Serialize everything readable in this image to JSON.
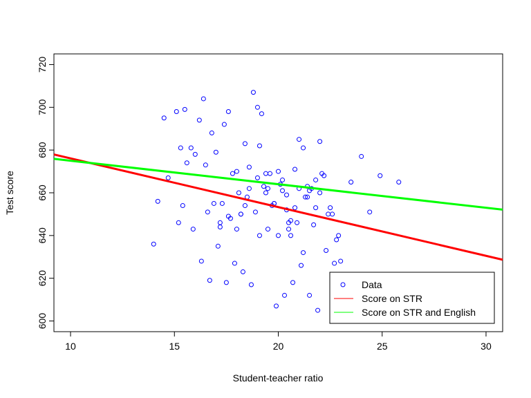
{
  "chart_data": {
    "type": "scatter",
    "title": "",
    "xlabel": "Student-teacher ratio",
    "ylabel": "Test score",
    "xlim": [
      9.2,
      30.8
    ],
    "ylim": [
      595,
      725
    ],
    "xticks": [
      10,
      15,
      20,
      25,
      30
    ],
    "yticks": [
      600,
      620,
      640,
      660,
      680,
      700,
      720
    ],
    "grid": false,
    "legend": {
      "position": "bottom-right",
      "entries": [
        "Data",
        "Score on STR",
        "Score on STR and English"
      ]
    },
    "series": [
      {
        "name": "Data",
        "kind": "points",
        "color": "#0000ff",
        "marker": "open-circle",
        "x": [
          14.0,
          14.2,
          14.5,
          14.7,
          15.1,
          15.2,
          15.3,
          15.4,
          15.5,
          15.6,
          15.8,
          16.0,
          16.2,
          16.4,
          16.5,
          16.6,
          16.8,
          17.0,
          17.2,
          17.4,
          17.6,
          17.8,
          18.0,
          18.2,
          18.4,
          18.6,
          18.8,
          19.0,
          19.2,
          19.4,
          19.6,
          19.8,
          20.0,
          20.2,
          20.4,
          20.6,
          20.8,
          21.0,
          21.2,
          21.4,
          21.6,
          21.8,
          22.0,
          22.2,
          22.4,
          22.6,
          22.8,
          23.0,
          23.5,
          24.0,
          24.4,
          24.9,
          25.8,
          16.3,
          16.7,
          17.1,
          17.5,
          17.9,
          18.3,
          18.7,
          19.1,
          19.5,
          19.9,
          20.3,
          20.7,
          21.1,
          21.5,
          21.9,
          22.3,
          22.7,
          18.1,
          18.5,
          18.9,
          19.3,
          19.7,
          20.1,
          20.5,
          20.9,
          21.3,
          21.7,
          17.3,
          17.7,
          19.0,
          20.0,
          21.0,
          22.0,
          18.0,
          19.5,
          20.5,
          21.5,
          16.9,
          15.9,
          17.2,
          18.6,
          19.4,
          20.2,
          20.8,
          21.4,
          22.1,
          22.9,
          18.2,
          19.8,
          20.6,
          21.2,
          19.1,
          18.4,
          17.6,
          20.4,
          21.8,
          22.5
        ],
        "y": [
          636,
          656,
          695,
          667,
          698,
          646,
          681,
          654,
          699,
          674,
          681,
          678,
          694,
          704,
          673,
          651,
          688,
          679,
          644,
          692,
          698,
          669,
          670,
          650,
          683,
          672,
          707,
          700,
          697,
          660,
          669,
          655,
          640,
          666,
          652,
          640,
          671,
          685,
          681,
          663,
          662,
          653,
          684,
          668,
          650,
          650,
          638,
          628,
          665,
          677,
          651,
          668,
          665,
          628,
          619,
          635,
          618,
          627,
          623,
          617,
          640,
          643,
          607,
          612,
          618,
          626,
          612,
          605,
          633,
          627,
          660,
          658,
          651,
          663,
          654,
          664,
          643,
          646,
          658,
          645,
          655,
          648,
          667,
          670,
          662,
          660,
          643,
          662,
          646,
          661,
          655,
          643,
          646,
          662,
          669,
          661,
          653,
          658,
          669,
          640,
          650,
          655,
          647,
          632,
          682,
          654,
          649,
          659,
          666,
          653
        ]
      },
      {
        "name": "Score on STR",
        "kind": "line",
        "color": "#ff0000",
        "slope": -2.28,
        "intercept": 698.9
      },
      {
        "name": "Score on STR and English",
        "kind": "line",
        "color": "#00ff00",
        "slope": -1.1,
        "intercept": 686.0
      }
    ]
  }
}
